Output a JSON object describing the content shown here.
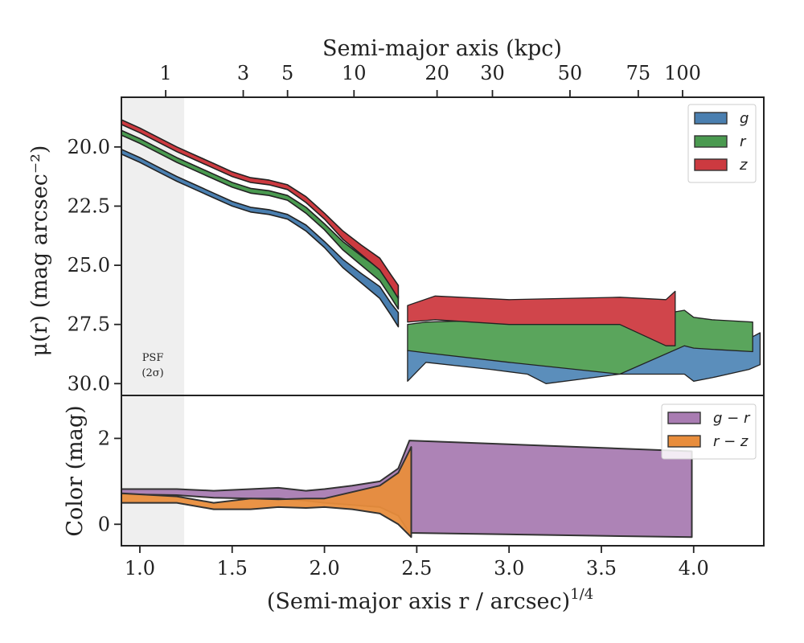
{
  "chart_data": [
    {
      "type": "area",
      "panel": "surface-brightness-profile",
      "xlabel": "(Semi-major axis r / arcsec)",
      "xlabel_exponent": "1/4",
      "ylabel": "μ(r) (mag arcsec⁻²)",
      "top_axis_label": "Semi-major axis (kpc)",
      "top_ticks": [
        {
          "label": "1",
          "x": 1.14
        },
        {
          "label": "3",
          "x": 1.56
        },
        {
          "label": "5",
          "x": 1.8
        },
        {
          "label": "10",
          "x": 2.16
        },
        {
          "label": "20",
          "x": 2.61
        },
        {
          "label": "30",
          "x": 2.91
        },
        {
          "label": "50",
          "x": 3.33
        },
        {
          "label": "75",
          "x": 3.7
        },
        {
          "label": "100",
          "x": 3.94
        }
      ],
      "xlim": [
        0.9,
        4.38
      ],
      "ylim": [
        30.5,
        17.9
      ],
      "yticks": [
        20.0,
        22.5,
        25.0,
        27.5,
        30.0
      ],
      "ytick_labels": [
        "20.0",
        "22.5",
        "25.0",
        "27.5",
        "30.0"
      ],
      "y_inverted": true,
      "shaded_region": {
        "x": [
          0.9,
          1.24
        ],
        "label_line1": "PSF",
        "label_line2": "(2σ)"
      },
      "legend": {
        "placement": "top-right",
        "entries": [
          "g",
          "r",
          "z"
        ]
      },
      "series": [
        {
          "name": "g",
          "color": "#4a7fb0",
          "upper": [
            [
              0.9,
              20.1
            ],
            [
              1.0,
              20.45
            ],
            [
              1.1,
              20.85
            ],
            [
              1.2,
              21.25
            ],
            [
              1.3,
              21.6
            ],
            [
              1.4,
              21.95
            ],
            [
              1.5,
              22.3
            ],
            [
              1.6,
              22.55
            ],
            [
              1.7,
              22.65
            ],
            [
              1.8,
              22.85
            ],
            [
              1.9,
              23.3
            ],
            [
              2.0,
              24.0
            ],
            [
              2.1,
              24.75
            ],
            [
              2.2,
              25.35
            ],
            [
              2.3,
              25.9
            ],
            [
              2.36,
              26.6
            ],
            [
              2.4,
              27.0
            ]
          ],
          "lower": [
            [
              2.4,
              27.6
            ],
            [
              2.36,
              27.1
            ],
            [
              2.3,
              26.4
            ],
            [
              2.2,
              25.75
            ],
            [
              2.1,
              25.1
            ],
            [
              2.0,
              24.25
            ],
            [
              1.9,
              23.55
            ],
            [
              1.8,
              23.05
            ],
            [
              1.7,
              22.85
            ],
            [
              1.6,
              22.75
            ],
            [
              1.5,
              22.5
            ],
            [
              1.4,
              22.15
            ],
            [
              1.3,
              21.8
            ],
            [
              1.2,
              21.45
            ],
            [
              1.1,
              21.05
            ],
            [
              1.0,
              20.65
            ],
            [
              0.9,
              20.3
            ]
          ],
          "outer": [
            [
              2.45,
              28.6
            ],
            [
              2.55,
              28.5
            ],
            [
              2.9,
              28.4
            ],
            [
              3.1,
              28.6
            ],
            [
              3.2,
              28.3
            ],
            [
              3.6,
              28.2
            ],
            [
              3.8,
              28.0
            ],
            [
              3.95,
              27.3
            ],
            [
              4.1,
              27.8
            ],
            [
              4.3,
              28.1
            ],
            [
              4.36,
              27.85
            ],
            [
              4.36,
              29.2
            ],
            [
              4.3,
              29.4
            ],
            [
              4.1,
              29.75
            ],
            [
              4.0,
              29.9
            ],
            [
              3.95,
              29.6
            ],
            [
              3.6,
              29.6
            ],
            [
              3.2,
              30.0
            ],
            [
              3.1,
              29.6
            ],
            [
              2.9,
              29.4
            ],
            [
              2.55,
              29.1
            ],
            [
              2.45,
              29.9
            ]
          ],
          "outer_color": "#5b8ebb"
        },
        {
          "name": "r",
          "color": "#4a9a50",
          "upper": [
            [
              0.9,
              19.3
            ],
            [
              1.0,
              19.65
            ],
            [
              1.1,
              20.05
            ],
            [
              1.2,
              20.45
            ],
            [
              1.3,
              20.8
            ],
            [
              1.4,
              21.15
            ],
            [
              1.5,
              21.5
            ],
            [
              1.6,
              21.75
            ],
            [
              1.7,
              21.85
            ],
            [
              1.8,
              22.05
            ],
            [
              1.9,
              22.55
            ],
            [
              2.0,
              23.25
            ],
            [
              2.1,
              24.0
            ],
            [
              2.2,
              24.6
            ],
            [
              2.3,
              25.15
            ],
            [
              2.36,
              25.85
            ],
            [
              2.4,
              26.3
            ]
          ],
          "lower": [
            [
              2.4,
              26.85
            ],
            [
              2.36,
              26.35
            ],
            [
              2.3,
              25.65
            ],
            [
              2.2,
              25.0
            ],
            [
              2.1,
              24.35
            ],
            [
              2.0,
              23.5
            ],
            [
              1.9,
              22.8
            ],
            [
              1.8,
              22.25
            ],
            [
              1.7,
              22.05
            ],
            [
              1.6,
              21.95
            ],
            [
              1.5,
              21.7
            ],
            [
              1.4,
              21.35
            ],
            [
              1.3,
              21.0
            ],
            [
              1.2,
              20.65
            ],
            [
              1.1,
              20.25
            ],
            [
              1.0,
              19.85
            ],
            [
              0.9,
              19.5
            ]
          ],
          "outer": [
            [
              2.45,
              27.5
            ],
            [
              2.55,
              27.4
            ],
            [
              3.0,
              27.3
            ],
            [
              3.6,
              27.2
            ],
            [
              3.8,
              27.1
            ],
            [
              3.95,
              26.9
            ],
            [
              4.0,
              27.2
            ],
            [
              4.1,
              27.3
            ],
            [
              4.32,
              27.4
            ],
            [
              4.32,
              28.65
            ],
            [
              4.1,
              28.55
            ],
            [
              4.0,
              28.5
            ],
            [
              3.95,
              28.4
            ],
            [
              3.6,
              29.6
            ],
            [
              3.0,
              29.1
            ],
            [
              2.55,
              28.7
            ],
            [
              2.45,
              28.6
            ]
          ],
          "outer_color": "#5aa55c"
        },
        {
          "name": "z",
          "color": "#cc3a40",
          "upper": [
            [
              0.9,
              18.85
            ],
            [
              1.0,
              19.2
            ],
            [
              1.1,
              19.6
            ],
            [
              1.2,
              20.0
            ],
            [
              1.3,
              20.35
            ],
            [
              1.4,
              20.7
            ],
            [
              1.5,
              21.05
            ],
            [
              1.6,
              21.3
            ],
            [
              1.7,
              21.4
            ],
            [
              1.8,
              21.6
            ],
            [
              1.9,
              22.1
            ],
            [
              2.0,
              22.8
            ],
            [
              2.1,
              23.55
            ],
            [
              2.2,
              24.15
            ],
            [
              2.3,
              24.7
            ],
            [
              2.36,
              25.4
            ],
            [
              2.4,
              25.85
            ]
          ],
          "lower": [
            [
              2.4,
              26.4
            ],
            [
              2.36,
              25.9
            ],
            [
              2.3,
              25.2
            ],
            [
              2.2,
              24.55
            ],
            [
              2.1,
              23.9
            ],
            [
              2.0,
              23.05
            ],
            [
              1.9,
              22.35
            ],
            [
              1.8,
              21.8
            ],
            [
              1.7,
              21.6
            ],
            [
              1.6,
              21.5
            ],
            [
              1.5,
              21.25
            ],
            [
              1.4,
              20.9
            ],
            [
              1.3,
              20.55
            ],
            [
              1.2,
              20.2
            ],
            [
              1.1,
              19.8
            ],
            [
              1.0,
              19.4
            ],
            [
              0.9,
              19.05
            ]
          ],
          "outer": [
            [
              2.45,
              26.7
            ],
            [
              2.6,
              26.3
            ],
            [
              3.0,
              26.45
            ],
            [
              3.6,
              26.35
            ],
            [
              3.85,
              26.45
            ],
            [
              3.9,
              26.1
            ],
            [
              3.9,
              28.4
            ],
            [
              3.85,
              28.4
            ],
            [
              3.6,
              27.5
            ],
            [
              3.0,
              27.5
            ],
            [
              2.6,
              27.3
            ],
            [
              2.45,
              27.4
            ]
          ],
          "outer_color": "#d0454b"
        }
      ]
    },
    {
      "type": "area",
      "panel": "color-profile",
      "xlabel": "(Semi-major axis r / arcsec)",
      "xlabel_exponent": "1/4",
      "ylabel": "Color (mag)",
      "xlim": [
        0.9,
        4.38
      ],
      "ylim": [
        -0.5,
        3.0
      ],
      "xticks": [
        1.0,
        1.5,
        2.0,
        2.5,
        3.0,
        3.5,
        4.0
      ],
      "xtick_labels": [
        "1.0",
        "1.5",
        "2.0",
        "2.5",
        "3.0",
        "3.5",
        "4.0"
      ],
      "yticks": [
        0,
        2
      ],
      "ytick_labels": [
        "0",
        "2"
      ],
      "shaded_region": {
        "x": [
          0.9,
          1.24
        ]
      },
      "legend": {
        "placement": "top-right",
        "entries": [
          "g − r",
          "r − z"
        ]
      },
      "series": [
        {
          "name": "g − r",
          "color": "#a97cb2",
          "upper": [
            [
              0.9,
              0.82
            ],
            [
              1.2,
              0.82
            ],
            [
              1.4,
              0.78
            ],
            [
              1.6,
              0.82
            ],
            [
              1.75,
              0.85
            ],
            [
              1.9,
              0.78
            ],
            [
              2.0,
              0.82
            ],
            [
              2.15,
              0.9
            ],
            [
              2.3,
              1.0
            ],
            [
              2.4,
              1.3
            ],
            [
              2.46,
              1.95
            ],
            [
              3.99,
              1.7
            ]
          ],
          "lower": [
            [
              3.99,
              -0.3
            ],
            [
              2.46,
              -0.2
            ],
            [
              2.4,
              0.2
            ],
            [
              2.3,
              0.4
            ],
            [
              2.15,
              0.45
            ],
            [
              2.0,
              0.5
            ],
            [
              1.9,
              0.55
            ],
            [
              1.75,
              0.6
            ],
            [
              1.6,
              0.6
            ],
            [
              1.4,
              0.62
            ],
            [
              1.2,
              0.68
            ],
            [
              0.9,
              0.7
            ]
          ]
        },
        {
          "name": "r − z",
          "color": "#e88d3c",
          "upper": [
            [
              0.9,
              0.72
            ],
            [
              1.2,
              0.65
            ],
            [
              1.4,
              0.5
            ],
            [
              1.6,
              0.6
            ],
            [
              1.75,
              0.58
            ],
            [
              1.9,
              0.6
            ],
            [
              2.0,
              0.6
            ],
            [
              2.15,
              0.75
            ],
            [
              2.3,
              0.9
            ],
            [
              2.4,
              1.2
            ],
            [
              2.47,
              1.8
            ]
          ],
          "lower": [
            [
              2.47,
              -0.3
            ],
            [
              2.4,
              0.0
            ],
            [
              2.3,
              0.25
            ],
            [
              2.15,
              0.35
            ],
            [
              2.0,
              0.4
            ],
            [
              1.9,
              0.38
            ],
            [
              1.75,
              0.4
            ],
            [
              1.6,
              0.35
            ],
            [
              1.4,
              0.35
            ],
            [
              1.2,
              0.5
            ],
            [
              0.9,
              0.5
            ]
          ]
        }
      ]
    }
  ]
}
